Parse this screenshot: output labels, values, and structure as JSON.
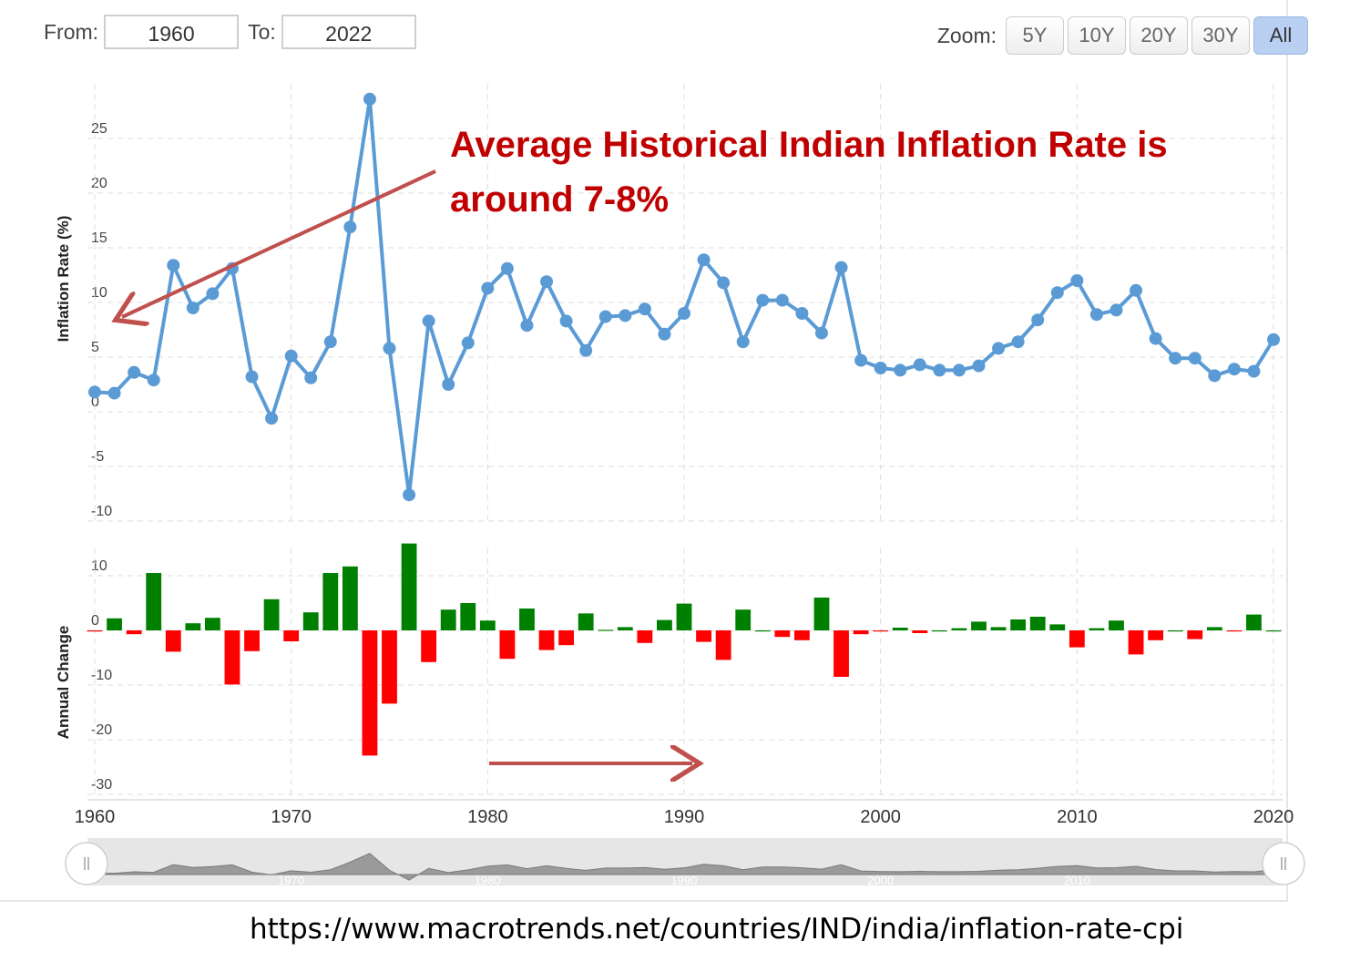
{
  "range": {
    "from_label": "From:",
    "from_value": "1960",
    "to_label": "To:",
    "to_value": "2022"
  },
  "zoom": {
    "label": "Zoom:",
    "buttons": [
      "5Y",
      "10Y",
      "20Y",
      "30Y",
      "All"
    ],
    "active": "All"
  },
  "annotation": {
    "line1": "Average Historical Indian Inflation Rate is",
    "line2": "around 7-8%",
    "color": "#c00000"
  },
  "source_url": "https://www.macrotrends.net/countries/IND/india/inflation-rate-cpi",
  "colors": {
    "line": "#5b9bd5",
    "positive_bar": "#008000",
    "negative_bar": "#ff0000",
    "arrow": "#c0504d"
  },
  "chart_data": [
    {
      "type": "line",
      "ylabel": "Inflation Rate (%)",
      "ylim": [
        -10,
        30
      ],
      "yticks": [
        "25",
        "20",
        "15",
        "10",
        "5",
        "0",
        "-5",
        "-10"
      ],
      "grid": true,
      "series": [
        {
          "x": [
            1960,
            1961,
            1962,
            1963,
            1964,
            1965,
            1966,
            1967,
            1968,
            1969,
            1970,
            1971,
            1972,
            1973,
            1974,
            1975,
            1976,
            1977,
            1978,
            1979,
            1980,
            1981,
            1982,
            1983,
            1984,
            1985,
            1986,
            1987,
            1988,
            1989,
            1990,
            1991,
            1992,
            1993,
            1994,
            1995,
            1996,
            1997,
            1998,
            1999,
            2000,
            2001,
            2002,
            2003,
            2004,
            2005,
            2006,
            2007,
            2008,
            2009,
            2010,
            2011,
            2012,
            2013,
            2014,
            2015,
            2016,
            2017,
            2018,
            2019,
            2020
          ],
          "values": [
            1.8,
            1.7,
            3.6,
            2.9,
            13.4,
            9.5,
            10.8,
            13.1,
            3.2,
            -0.6,
            5.1,
            3.1,
            6.4,
            16.9,
            28.6,
            5.8,
            -7.6,
            8.3,
            2.5,
            6.3,
            11.3,
            13.1,
            7.9,
            11.9,
            8.3,
            5.6,
            8.7,
            8.8,
            9.4,
            7.1,
            9.0,
            13.9,
            11.8,
            6.4,
            10.2,
            10.2,
            9.0,
            7.2,
            13.2,
            4.7,
            4.0,
            3.8,
            4.3,
            3.8,
            3.8,
            4.2,
            5.8,
            6.4,
            8.4,
            10.9,
            12.0,
            8.9,
            9.3,
            11.1,
            6.7,
            4.9,
            4.9,
            3.3,
            3.9,
            3.7,
            6.6
          ]
        }
      ]
    },
    {
      "type": "bar",
      "ylabel": "Annual Change",
      "ylim": [
        -30,
        15
      ],
      "yticks": [
        "10",
        "0",
        "-10",
        "-20",
        "-30"
      ],
      "xticks": [
        "1960",
        "1970",
        "1980",
        "1990",
        "2000",
        "2010",
        "2020"
      ],
      "series": [
        {
          "x": [
            1960,
            1961,
            1962,
            1963,
            1964,
            1965,
            1966,
            1967,
            1968,
            1969,
            1970,
            1971,
            1972,
            1973,
            1974,
            1975,
            1976,
            1977,
            1978,
            1979,
            1980,
            1981,
            1982,
            1983,
            1984,
            1985,
            1986,
            1987,
            1988,
            1989,
            1990,
            1991,
            1992,
            1993,
            1994,
            1995,
            1996,
            1997,
            1998,
            1999,
            2000,
            2001,
            2002,
            2003,
            2004,
            2005,
            2006,
            2007,
            2008,
            2009,
            2010,
            2011,
            2012,
            2013,
            2014,
            2015,
            2016,
            2017,
            2018,
            2019,
            2020
          ],
          "values": [
            -0.1,
            2.2,
            -0.7,
            10.5,
            -3.9,
            1.3,
            2.3,
            -9.9,
            -3.8,
            5.7,
            -2.0,
            3.3,
            10.5,
            11.7,
            -22.9,
            -13.4,
            15.9,
            -5.8,
            3.8,
            5.0,
            1.8,
            -5.2,
            4.0,
            -3.6,
            -2.7,
            3.1,
            0.1,
            0.6,
            -2.3,
            1.9,
            4.9,
            -2.1,
            -5.4,
            3.8,
            0.0,
            -1.2,
            -1.8,
            6.0,
            -8.5,
            -0.7,
            -0.2,
            0.5,
            -0.5,
            0.0,
            0.4,
            1.6,
            0.6,
            2.0,
            2.5,
            1.1,
            -3.1,
            0.4,
            1.8,
            -4.4,
            -1.8,
            0.0,
            -1.6,
            0.6,
            -0.2,
            2.9,
            0
          ]
        }
      ]
    },
    {
      "type": "area",
      "name": "navigator",
      "xticks": [
        "1970",
        "1980",
        "1990",
        "2000",
        "2010"
      ]
    }
  ]
}
